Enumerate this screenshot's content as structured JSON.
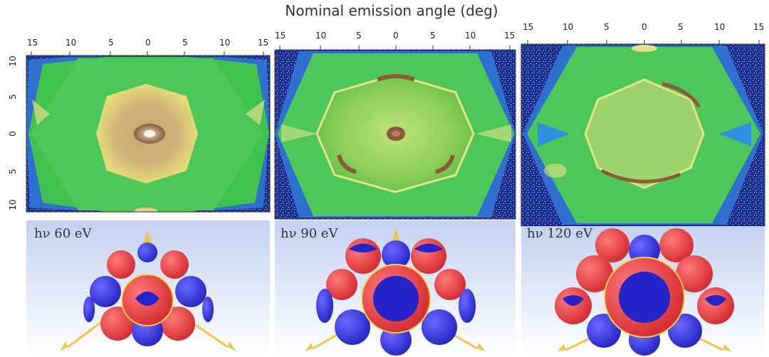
{
  "figure": {
    "title": "Nominal emission angle (deg)"
  },
  "chart_data": [
    {
      "type": "heatmap",
      "panel": "left",
      "photon_energy_label": "hν 60 eV",
      "x_tick_labels": [
        "15",
        "10",
        "5",
        "0",
        "5",
        "10",
        "15"
      ],
      "y_tick_labels": [
        "10",
        "5",
        "0",
        "5",
        "10"
      ],
      "xlim": [
        -15,
        15
      ],
      "ylim": [
        -10,
        10
      ],
      "colors": {
        "low": "#1a2f9c",
        "mid": "#33c24d",
        "high": "#e8e27a",
        "top": "#a66b3a"
      }
    },
    {
      "type": "heatmap",
      "panel": "middle",
      "photon_energy_label": "hν 90 eV",
      "x_tick_labels": [
        "15",
        "10",
        "5",
        "0",
        "5",
        "10",
        "15"
      ],
      "xlim": [
        -15,
        15
      ],
      "colors": {
        "low": "#1a2f9c",
        "mid": "#33c24d",
        "high": "#e8e27a",
        "top": "#a66b3a"
      }
    },
    {
      "type": "heatmap",
      "panel": "right",
      "photon_energy_label": "hν 120 eV",
      "x_tick_labels": [
        "15",
        "10",
        "5",
        "0",
        "5",
        "10",
        "15"
      ],
      "xlim": [
        -15,
        15
      ],
      "colors": {
        "low": "#1a2f9c",
        "mid": "#33c24d",
        "high": "#e8e27a",
        "top": "#a66b3a"
      }
    }
  ],
  "orbital_colors": {
    "lobe_pos": "#e8383c",
    "lobe_neg": "#3a3ad8",
    "arrow": "#f2c44a",
    "ring": "#f2d64a",
    "background_top": "#c9d6f3",
    "background_bottom": "#ffffff"
  }
}
